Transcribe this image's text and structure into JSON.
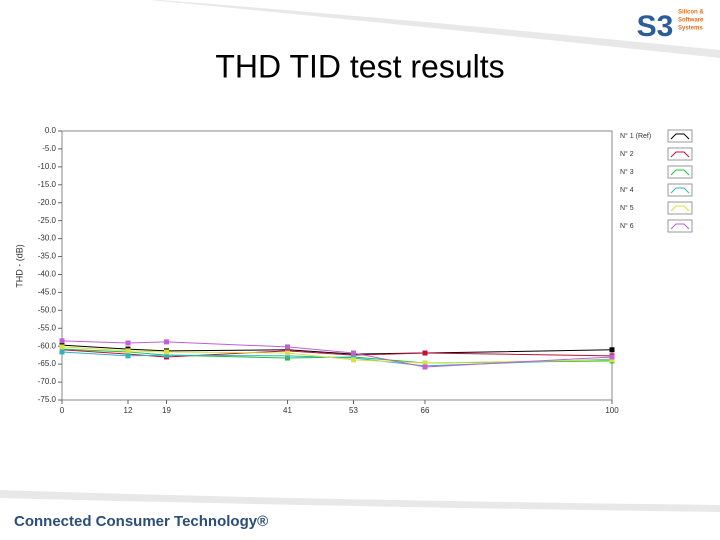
{
  "logo": {
    "mark": "S3",
    "text": [
      "Silicon &",
      "Software",
      "Systems"
    ]
  },
  "footer": "Connected Consumer Technology®",
  "chart_data": {
    "type": "line",
    "title": "THD TID test results",
    "y_label": "THD - (dB)",
    "x": [
      0,
      12,
      19,
      41,
      53,
      66,
      100
    ],
    "xlim": [
      0,
      100
    ],
    "xticks": [
      0,
      12,
      19,
      41,
      53,
      66,
      100
    ],
    "ylim": [
      -75,
      0
    ],
    "yticks": [
      {
        "value": 0,
        "label": "0.0"
      },
      {
        "value": -5,
        "label": "-5.0"
      },
      {
        "value": -10,
        "label": "-10.0"
      },
      {
        "value": -15,
        "label": "-15.0"
      },
      {
        "value": -20,
        "label": "-20.0"
      },
      {
        "value": -25,
        "label": "-25.0"
      },
      {
        "value": -30,
        "label": "-30.0"
      },
      {
        "value": -35,
        "label": "-35.0"
      },
      {
        "value": -40,
        "label": "-40.0"
      },
      {
        "value": -45,
        "label": "-45.0"
      },
      {
        "value": -50,
        "label": "-50.0"
      },
      {
        "value": -55,
        "label": "-55.0"
      },
      {
        "value": -60,
        "label": "-60.0"
      },
      {
        "value": -65,
        "label": "-65.0"
      },
      {
        "value": -70,
        "label": "-70.0"
      },
      {
        "value": -75,
        "label": "-75.0"
      }
    ],
    "grid": false,
    "legend": "right",
    "series": [
      {
        "name": "N° 1 (Ref)",
        "color": "#000000",
        "values": [
          -59.7,
          -60.8,
          -61.3,
          -61,
          -62.2,
          -61.9,
          -61
        ]
      },
      {
        "name": "N° 2",
        "color": "#c0103a",
        "values": [
          -61,
          -62.2,
          -63,
          -61.3,
          -62.5,
          -61.9,
          -62.7
        ]
      },
      {
        "name": "N° 3",
        "color": "#20c040",
        "values": [
          -60.8,
          -61.6,
          -62.5,
          -63.3,
          -63,
          -64.7,
          -64.1
        ]
      },
      {
        "name": "N° 4",
        "color": "#30b0c8",
        "values": [
          -61.6,
          -62.7,
          -62.5,
          -62.7,
          -63.3,
          -65.5,
          -63.6
        ]
      },
      {
        "name": "N° 5",
        "color": "#d8e040",
        "values": [
          -60.2,
          -61.3,
          -61.6,
          -61.9,
          -63.8,
          -64.7,
          -63.8
        ]
      },
      {
        "name": "N° 6",
        "color": "#c060d8",
        "values": [
          -58.5,
          -59.1,
          -58.8,
          -60.2,
          -61.9,
          -65.8,
          -63
        ]
      }
    ]
  }
}
